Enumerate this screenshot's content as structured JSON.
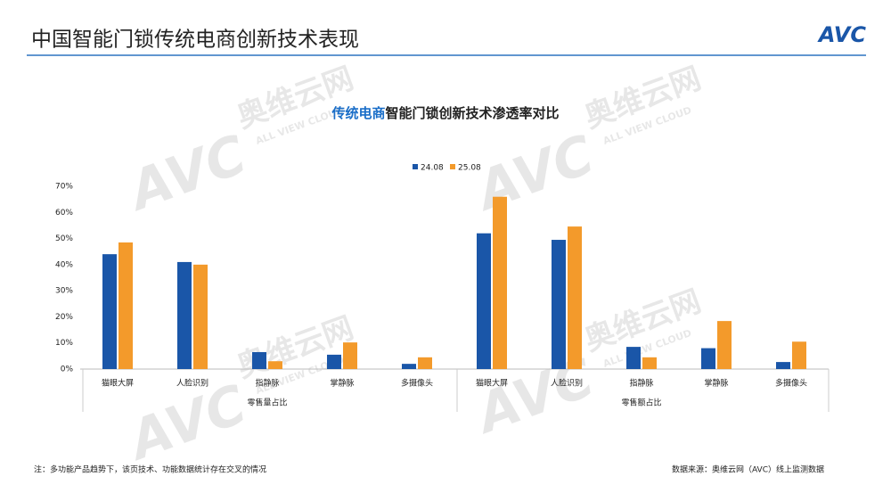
{
  "header": {
    "title": "中国智能门锁传统电商创新技术表现",
    "logo": "AVC"
  },
  "watermark": {
    "cn": "奥维云网",
    "en": "ALL VIEW CLOUD",
    "logo": "AVC"
  },
  "chart_data": {
    "type": "bar",
    "title": [
      "传统电商",
      "智能门锁创新技术渗透率对比"
    ],
    "categories": [
      "猫眼大屏",
      "人脸识别",
      "指静脉",
      "掌静脉",
      "多摄像头",
      "猫眼大屏",
      "人脸识别",
      "指静脉",
      "掌静脉",
      "多摄像头"
    ],
    "groups": [
      "零售量占比",
      "零售额占比"
    ],
    "series": [
      {
        "name": "24.08",
        "color": "#1a56a8",
        "values": [
          44,
          41,
          6.5,
          5.5,
          2,
          52,
          49.5,
          8.5,
          8,
          2.7
        ]
      },
      {
        "name": "25.08",
        "color": "#f39a2b",
        "values": [
          48.5,
          40,
          3,
          10.2,
          4.5,
          66,
          54.6,
          4.5,
          18.4,
          10.5
        ]
      }
    ],
    "ylim": [
      0,
      70
    ],
    "yticks": [
      {
        "value": 0,
        "label": "0%"
      },
      {
        "value": 10,
        "label": "10%"
      },
      {
        "value": 20,
        "label": "20%"
      },
      {
        "value": 30,
        "label": "30%"
      },
      {
        "value": 40,
        "label": "40%"
      },
      {
        "value": 50,
        "label": "50%"
      },
      {
        "value": 60,
        "label": "60%"
      },
      {
        "value": 70,
        "label": "70%"
      }
    ],
    "grid": false,
    "legend": "top"
  },
  "footer": {
    "note": "注：多功能产品趋势下，该页技术、功能数据统计存在交叉的情况",
    "source": "数据来源：奥维云网（AVC）线上监测数据"
  }
}
